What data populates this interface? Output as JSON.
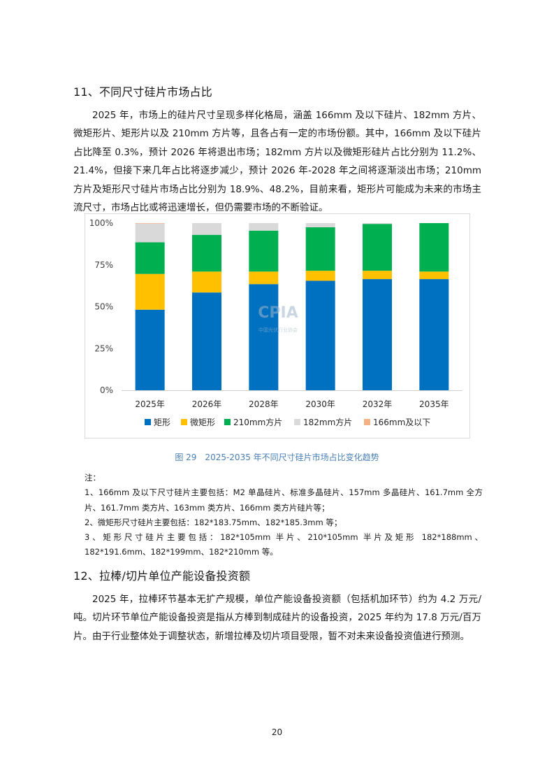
{
  "section11": {
    "title": "11、不同尺寸硅片市场占比",
    "paragraph": "2025 年，市场上的硅片尺寸呈现多样化格局，涵盖 166mm 及以下硅片、182mm 方片、微矩形片、矩形片以及 210mm 方片等，且各占有一定的市场份额。其中，166mm 及以下硅片占比降至 0.3%，预计 2026 年将退出市场；182mm 方片以及微矩形硅片占比分别为 11.2%、21.4%，但接下来几年占比将逐步减少，预计 2026 年-2028 年之间将逐渐淡出市场；210mm 方片及矩形尺寸硅片市场占比分别为 18.9%、48.2%，目前来看，矩形片可能成为未来的市场主流尺寸，市场占比或将迅速增长，但仍需要市场的不断验证。"
  },
  "chart_data": {
    "type": "bar",
    "stacked": true,
    "categories": [
      "2025年",
      "2026年",
      "2028年",
      "2030年",
      "2032年",
      "2035年"
    ],
    "series": [
      {
        "name": "矩形",
        "color": "#0070C0",
        "values": [
          48.2,
          58.5,
          63.5,
          65.5,
          66.5,
          66.5
        ]
      },
      {
        "name": "微矩形",
        "color": "#FFC000",
        "values": [
          21.4,
          12.5,
          7.5,
          6.0,
          5.0,
          4.5
        ]
      },
      {
        "name": "210mm方片",
        "color": "#00B050",
        "values": [
          18.9,
          22.0,
          24.5,
          26.0,
          28.0,
          29.0
        ]
      },
      {
        "name": "182mm方片",
        "color": "#D9D9D9",
        "values": [
          11.2,
          7.0,
          4.5,
          2.5,
          0.5,
          0.0
        ]
      },
      {
        "name": "166mm及以下",
        "color": "#F4B183",
        "values": [
          0.3,
          0.0,
          0.0,
          0.0,
          0.0,
          0.0
        ]
      }
    ],
    "yticks": [
      "0%",
      "25%",
      "50%",
      "75%",
      "100%"
    ],
    "ylim": [
      0,
      100
    ],
    "legend_position": "bottom",
    "grid": false
  },
  "watermark": {
    "text": "CPIA",
    "subtitle": "中国光伏行业协会"
  },
  "caption": "图 29　2025-2035 年不同尺寸硅片市场占比变化趋势",
  "notes": {
    "title": "注：",
    "items": [
      "1、166mm 及以下尺寸硅片主要包括：M2 单晶硅片、标准多晶硅片、157mm 多晶硅片、161.7mm 全方片、161.7mm 类方片、163mm 类方片、166mm 类方片硅片等；",
      "2、微矩形尺寸硅片主要包括：182*183.75mm、182*185.3mm 等；",
      "3、矩形尺寸硅片主要包括：182*105mm 半片、210*105mm 半片及矩形 182*188mm、182*191.6mm、182*199mm、182*210mm 等。"
    ]
  },
  "section12": {
    "title": "12、拉棒/切片单位产能设备投资额",
    "paragraph": "2025 年，拉棒环节基本无扩产规模，单位产能设备投资额（包括机加环节）约为 4.2 万元/吨。切片环节单位产能设备投资是指从方棒到制成硅片的设备投资，2025 年约为 17.8 万元/百万片。由于行业整体处于调整状态，新增拉棒及切片项目受限，暂不对未来设备投资值进行预测。"
  },
  "page_number": "20"
}
